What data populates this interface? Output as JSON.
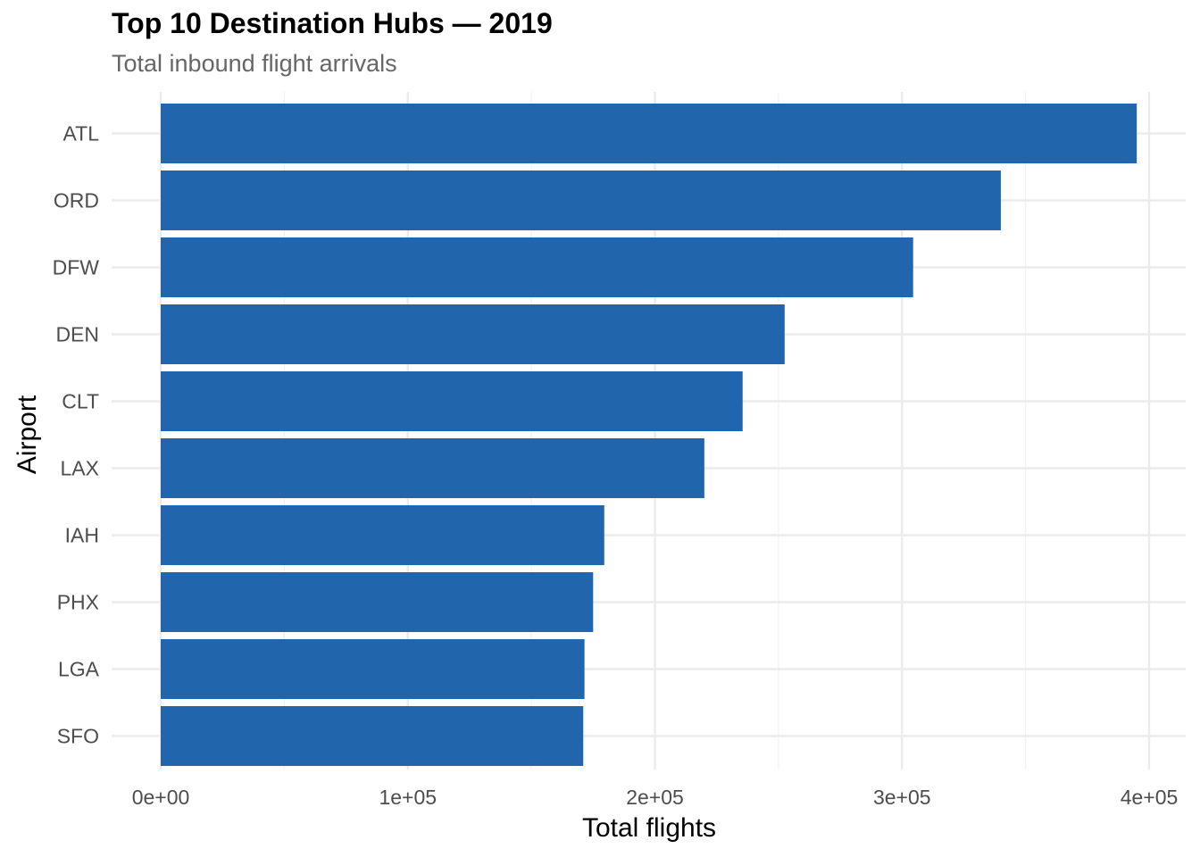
{
  "chart_data": {
    "type": "bar",
    "orientation": "horizontal",
    "title": "Top 10 Destination Hubs — 2019",
    "subtitle": "Total inbound flight arrivals",
    "xlabel": "Total flights",
    "ylabel": "Airport",
    "categories": [
      "ATL",
      "ORD",
      "DFW",
      "DEN",
      "CLT",
      "LAX",
      "IAH",
      "PHX",
      "LGA",
      "SFO"
    ],
    "values": [
      395000,
      340000,
      304500,
      252500,
      235500,
      220000,
      179500,
      175000,
      171500,
      171000
    ],
    "xlim": [
      0,
      400000
    ],
    "xticks": [
      0,
      100000,
      200000,
      300000,
      400000
    ],
    "xtick_labels": [
      "0e+00",
      "1e+05",
      "2e+05",
      "3e+05",
      "4e+05"
    ],
    "bar_color": "#2166ac",
    "grid": true,
    "legend": "none"
  }
}
